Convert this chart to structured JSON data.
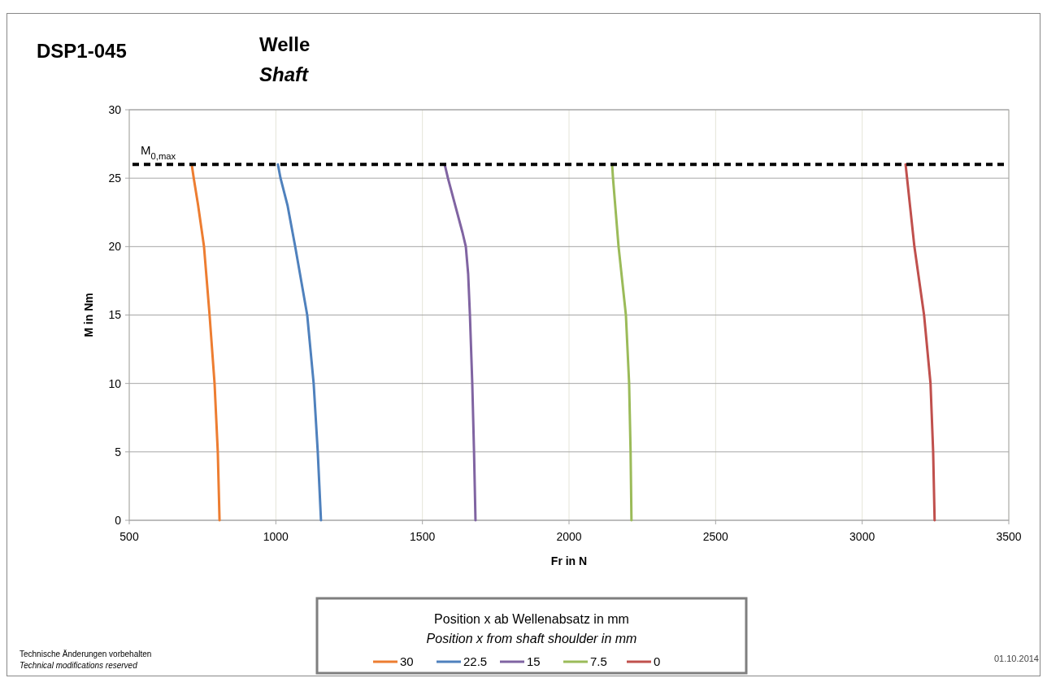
{
  "chart_data": {
    "type": "line",
    "title": "Welle",
    "subtitle": "Shaft",
    "xlabel": "Fr in N",
    "ylabel": "M in Nm",
    "xlim": [
      500,
      3500
    ],
    "xticks": [
      500,
      1000,
      1500,
      2000,
      2500,
      3000,
      3500
    ],
    "ylim": [
      0,
      30
    ],
    "yticks": [
      0,
      5,
      10,
      15,
      20,
      25,
      30
    ],
    "grid": true,
    "legend": "bottom",
    "legend_title": "Position x ab Wellenabsatz in mm\nPosition x from shaft shoulder in mm",
    "line_style": "solid",
    "marker": "none",
    "series": [
      {
        "name": "30",
        "color": "#ed7d31",
        "x": [
          713,
          720,
          735,
          755,
          774,
          791,
          802,
          808
        ],
        "values": [
          26,
          25,
          23,
          20,
          15,
          10,
          5,
          0
        ]
      },
      {
        "name": "22.5",
        "color": "#4f81bd",
        "x": [
          1007,
          1016,
          1040,
          1066,
          1107,
          1129,
          1143,
          1154
        ],
        "values": [
          26,
          25,
          23,
          20,
          15,
          10,
          5,
          0
        ]
      },
      {
        "name": "15",
        "color": "#8064a2",
        "x": [
          1576,
          1587,
          1637,
          1648,
          1656,
          1662,
          1670,
          1676,
          1681
        ],
        "values": [
          26,
          25,
          21,
          20,
          18,
          15,
          10,
          5,
          0
        ]
      },
      {
        "name": "7.5",
        "color": "#9bbb59",
        "x": [
          2147,
          2150,
          2169,
          2194,
          2205,
          2210,
          2213
        ],
        "values": [
          26,
          25,
          20,
          15,
          10,
          5,
          0
        ]
      },
      {
        "name": "0",
        "color": "#c0504d",
        "x": [
          3148,
          3153,
          3178,
          3211,
          3233,
          3242,
          3247
        ],
        "values": [
          26,
          25,
          20,
          15,
          10,
          5,
          0
        ]
      }
    ],
    "ref_lines": [
      {
        "axis": "y",
        "value": 26,
        "label": "M$_{0,max}$",
        "color": "#000000",
        "line_style": "dashed"
      }
    ],
    "annotations": [
      "DSP1-045",
      "Technische Änderungen vorbehalten",
      "Technical modifications reserved",
      "01.10.2014"
    ]
  }
}
